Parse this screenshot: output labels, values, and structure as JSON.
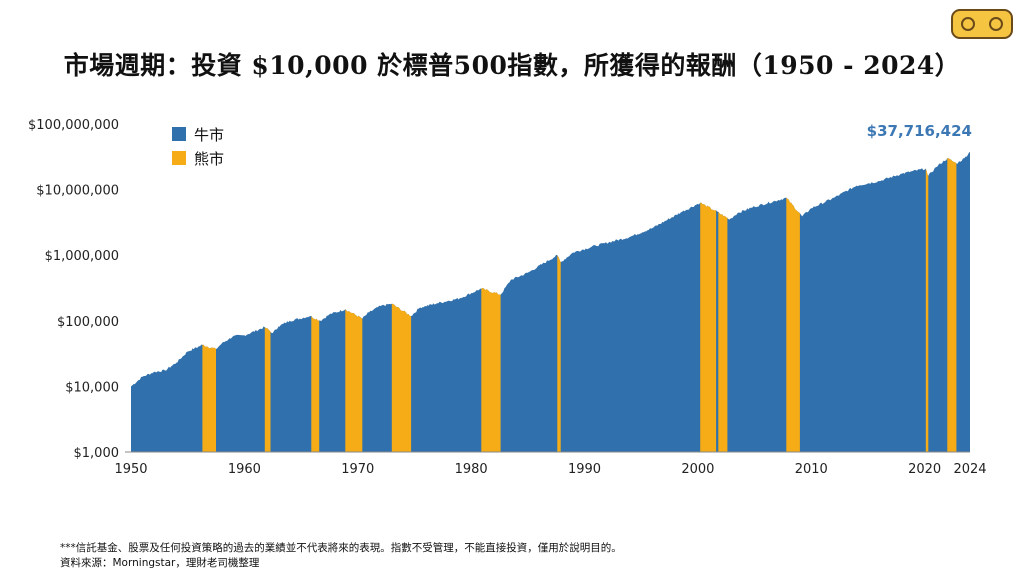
{
  "title": "市場週期：投資 $10,000 於標普500指數，所獲得的報酬（1950 - 2024）",
  "logo": {
    "name": "理財老司機",
    "colors": {
      "fill": "#f5c542",
      "outline": "#6b4a1a"
    }
  },
  "footnotes": {
    "line1": "***信託基金、股票及任何投資策略的過去的業績並不代表將來的表現。指數不受管理，不能直接投資，僅用於說明目的。",
    "line2": "資料來源：Morningstar，理財老司機整理"
  },
  "colors": {
    "bull": "#3070ad",
    "bear": "#f5ac16",
    "label": "#3c78b4"
  },
  "chart_data": {
    "type": "area",
    "y_scale": "log",
    "ylim": [
      1000,
      100000000
    ],
    "xlim": [
      1950,
      2024
    ],
    "y_ticks": [
      {
        "value": 1000,
        "label": "$1,000"
      },
      {
        "value": 10000,
        "label": "$10,000"
      },
      {
        "value": 100000,
        "label": "$100,000"
      },
      {
        "value": 1000000,
        "label": "$1,000,000"
      },
      {
        "value": 10000000,
        "label": "$10,000,000"
      },
      {
        "value": 100000000,
        "label": "$100,000,000"
      }
    ],
    "x_ticks": [
      1950,
      1960,
      1970,
      1980,
      1990,
      2000,
      2010,
      2020,
      2024
    ],
    "legend": {
      "position": "top-left",
      "items": [
        {
          "name": "牛市",
          "color": "#3070ad"
        },
        {
          "name": "熊市",
          "color": "#f5ac16"
        }
      ]
    },
    "final_value_label": "$37,716,424",
    "final_value": 37716424,
    "series": [
      {
        "x": 1950.0,
        "y": 10000
      },
      {
        "x": 1951.0,
        "y": 14000
      },
      {
        "x": 1952.0,
        "y": 16500
      },
      {
        "x": 1953.0,
        "y": 17500
      },
      {
        "x": 1954.0,
        "y": 23000
      },
      {
        "x": 1955.0,
        "y": 34000
      },
      {
        "x": 1956.3,
        "y": 43000
      },
      {
        "x": 1957.5,
        "y": 37000
      },
      {
        "x": 1958.0,
        "y": 45000
      },
      {
        "x": 1959.0,
        "y": 58000
      },
      {
        "x": 1960.0,
        "y": 60000
      },
      {
        "x": 1961.8,
        "y": 80000
      },
      {
        "x": 1962.5,
        "y": 65000
      },
      {
        "x": 1963.0,
        "y": 82000
      },
      {
        "x": 1964.0,
        "y": 100000
      },
      {
        "x": 1965.8,
        "y": 118000
      },
      {
        "x": 1966.7,
        "y": 100000
      },
      {
        "x": 1967.5,
        "y": 125000
      },
      {
        "x": 1968.9,
        "y": 150000
      },
      {
        "x": 1970.4,
        "y": 108000
      },
      {
        "x": 1971.0,
        "y": 135000
      },
      {
        "x": 1972.0,
        "y": 168000
      },
      {
        "x": 1973.0,
        "y": 182000
      },
      {
        "x": 1974.7,
        "y": 118000
      },
      {
        "x": 1975.5,
        "y": 160000
      },
      {
        "x": 1977.0,
        "y": 185000
      },
      {
        "x": 1979.0,
        "y": 220000
      },
      {
        "x": 1980.9,
        "y": 310000
      },
      {
        "x": 1982.6,
        "y": 250000
      },
      {
        "x": 1983.5,
        "y": 420000
      },
      {
        "x": 1985.0,
        "y": 540000
      },
      {
        "x": 1987.6,
        "y": 1000000
      },
      {
        "x": 1987.9,
        "y": 780000
      },
      {
        "x": 1989.0,
        "y": 1100000
      },
      {
        "x": 1991.0,
        "y": 1400000
      },
      {
        "x": 1994.0,
        "y": 1900000
      },
      {
        "x": 1996.0,
        "y": 2600000
      },
      {
        "x": 1998.5,
        "y": 4500000
      },
      {
        "x": 2000.2,
        "y": 6300000
      },
      {
        "x": 2001.5,
        "y": 4800000
      },
      {
        "x": 2002.8,
        "y": 3500000
      },
      {
        "x": 2003.5,
        "y": 4400000
      },
      {
        "x": 2005.0,
        "y": 5500000
      },
      {
        "x": 2007.8,
        "y": 7500000
      },
      {
        "x": 2009.2,
        "y": 3900000
      },
      {
        "x": 2010.0,
        "y": 5200000
      },
      {
        "x": 2012.0,
        "y": 7500000
      },
      {
        "x": 2014.0,
        "y": 11500000
      },
      {
        "x": 2016.0,
        "y": 13500000
      },
      {
        "x": 2018.0,
        "y": 17500000
      },
      {
        "x": 2020.1,
        "y": 21000000
      },
      {
        "x": 2020.3,
        "y": 16000000
      },
      {
        "x": 2021.0,
        "y": 22000000
      },
      {
        "x": 2022.0,
        "y": 30000000
      },
      {
        "x": 2022.8,
        "y": 25000000
      },
      {
        "x": 2023.5,
        "y": 30000000
      },
      {
        "x": 2024.0,
        "y": 37716424
      }
    ],
    "bear_markets": [
      [
        1956.3,
        1957.5
      ],
      [
        1961.8,
        1962.3
      ],
      [
        1965.9,
        1966.6
      ],
      [
        1968.9,
        1970.4
      ],
      [
        1973.0,
        1974.7
      ],
      [
        1980.9,
        1982.6
      ],
      [
        1987.6,
        1987.9
      ],
      [
        2000.2,
        2001.6
      ],
      [
        2001.8,
        2002.6
      ],
      [
        2007.8,
        2009.0
      ],
      [
        2020.1,
        2020.3
      ],
      [
        2022.0,
        2022.8
      ]
    ]
  }
}
